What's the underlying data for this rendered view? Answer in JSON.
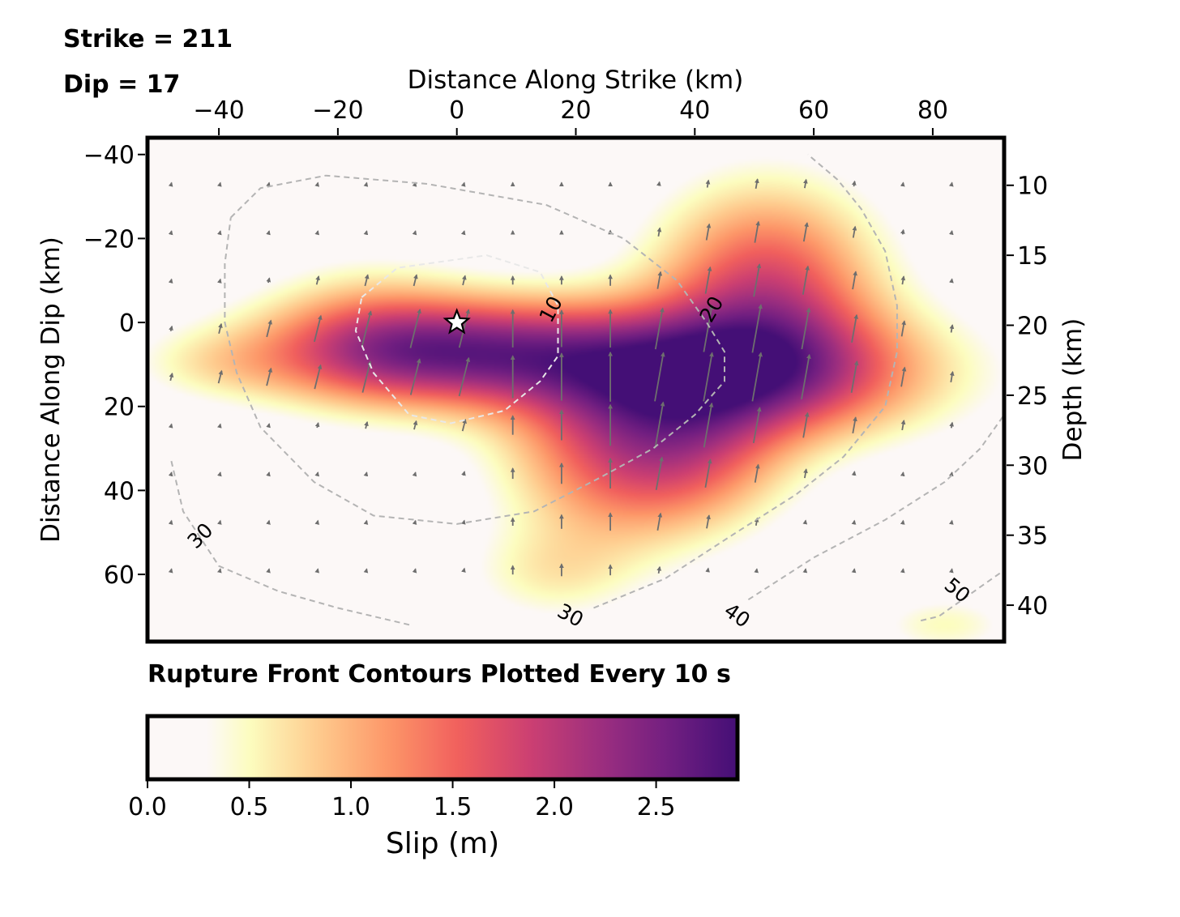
{
  "annotations": {
    "strike": "Strike = 211",
    "dip": "Dip = 17",
    "rupture_note": "Rupture Front Contours Plotted Every 10 s"
  },
  "chart_data": [
    {
      "type": "heatmap",
      "xlabel": "Distance Along Strike (km)",
      "ylabel": "Distance Along Dip (km)",
      "y2label": "Depth (km)",
      "xlim": [
        -52,
        92
      ],
      "ylim": [
        76,
        -44
      ],
      "y2lim": [
        42.6,
        6.6
      ],
      "x_ticks": [
        -40,
        -20,
        0,
        20,
        40,
        60,
        80
      ],
      "x_tick_labels": [
        "−40",
        "−20",
        "0",
        "20",
        "40",
        "60",
        "80"
      ],
      "y_ticks": [
        -40,
        -20,
        0,
        20,
        40,
        60
      ],
      "y_tick_labels": [
        "−40",
        "−20",
        "0",
        "20",
        "40",
        "60"
      ],
      "y2_ticks": [
        10,
        15,
        20,
        25,
        30,
        35,
        40
      ],
      "y2_tick_labels": [
        "10",
        "15",
        "20",
        "25",
        "30",
        "35",
        "40"
      ],
      "colormap": [
        "#fcfdbf",
        "#feca8d",
        "#fd9668",
        "#f1605d",
        "#cd4071",
        "#9e2f7f",
        "#721f81",
        "#440f76"
      ],
      "background_color": "#fcf8f7",
      "grid": false,
      "hypocenter": {
        "x": 0,
        "y": 0
      },
      "slip_sources": [
        {
          "x": 0,
          "y": 7,
          "sx": 22,
          "sy": 9,
          "amp": 2.25
        },
        {
          "x": -15,
          "y": 2,
          "sx": 12,
          "sy": 12,
          "amp": 0.6
        },
        {
          "x": 47,
          "y": 12,
          "sx": 22,
          "sy": 11,
          "amp": 2.3
        },
        {
          "x": 52,
          "y": -10,
          "sx": 13,
          "sy": 16,
          "amp": 1.6
        },
        {
          "x": 27,
          "y": 32,
          "sx": 13,
          "sy": 15,
          "amp": 1.4
        },
        {
          "x": 42,
          "y": 32,
          "sx": 11,
          "sy": 12,
          "amp": 0.8
        },
        {
          "x": -40,
          "y": 10,
          "sx": 10,
          "sy": 6,
          "amp": 0.4
        },
        {
          "x": 16,
          "y": 60,
          "sx": 10,
          "sy": 8,
          "amp": 0.5
        },
        {
          "x": 82,
          "y": 72,
          "sx": 8,
          "sy": 5,
          "amp": 0.5
        }
      ],
      "contours": [
        {
          "level": 10,
          "label": "10",
          "points": [
            [
              -16,
              -6
            ],
            [
              -10,
              -13
            ],
            [
              5,
              -16
            ],
            [
              14,
              -12
            ],
            [
              17,
              -4
            ],
            [
              17,
              8
            ],
            [
              14,
              14
            ],
            [
              8,
              21
            ],
            [
              -1,
              24
            ],
            [
              -8,
              22
            ],
            [
              -14,
              12
            ],
            [
              -17,
              2
            ],
            [
              -16,
              -6
            ]
          ]
        },
        {
          "level": 20,
          "label": "20",
          "points": [
            [
              -38,
              -25
            ],
            [
              -33,
              -32
            ],
            [
              -22,
              -35
            ],
            [
              -5,
              -33
            ],
            [
              15,
              -28
            ],
            [
              28,
              -20
            ],
            [
              37,
              -10
            ],
            [
              42,
              0
            ],
            [
              45,
              7
            ],
            [
              45,
              14
            ],
            [
              40,
              22
            ],
            [
              33,
              30
            ],
            [
              24,
              37
            ],
            [
              13,
              45
            ],
            [
              0,
              48
            ],
            [
              -14,
              46
            ],
            [
              -24,
              38
            ],
            [
              -33,
              25
            ],
            [
              -37,
              12
            ],
            [
              -39,
              0
            ],
            [
              -39,
              -14
            ],
            [
              -38,
              -25
            ]
          ]
        },
        {
          "level": 30,
          "label": "30",
          "points": [
            [
              -48,
              33
            ],
            [
              -46,
              45
            ],
            [
              -40,
              58
            ],
            [
              -30,
              64
            ],
            [
              -20,
              68
            ],
            [
              -8,
              72
            ]
          ]
        },
        {
          "level": 30,
          "label": "30",
          "points": [
            [
              23,
              68
            ],
            [
              35,
              61
            ],
            [
              47,
              50
            ],
            [
              57,
              41
            ],
            [
              65,
              32
            ],
            [
              72,
              20
            ],
            [
              74,
              7
            ],
            [
              74,
              -4
            ],
            [
              72,
              -17
            ],
            [
              68,
              -27
            ],
            [
              64,
              -34
            ],
            [
              59,
              -40
            ]
          ]
        },
        {
          "level": 40,
          "label": "40",
          "points": [
            [
              49,
              66
            ],
            [
              60,
              56
            ],
            [
              72,
              47
            ],
            [
              82,
              38
            ],
            [
              88,
              30
            ],
            [
              92,
              22
            ]
          ]
        },
        {
          "level": 50,
          "label": "50",
          "points": [
            [
              78,
              71
            ],
            [
              81,
              70
            ],
            [
              84,
              67
            ],
            [
              88,
              63
            ],
            [
              92,
              59
            ]
          ]
        }
      ],
      "contour_labels": [
        {
          "text": "10",
          "x": 16,
          "y": -3,
          "angle": -62
        },
        {
          "text": "20",
          "x": 43,
          "y": -3,
          "angle": -60
        },
        {
          "text": "30",
          "x": -43,
          "y": 51,
          "angle": -45
        },
        {
          "text": "30",
          "x": 19,
          "y": 70,
          "angle": 28
        },
        {
          "text": "40",
          "x": 47,
          "y": 70,
          "angle": 35
        },
        {
          "text": "50",
          "x": 84,
          "y": 64,
          "angle": 40
        }
      ]
    },
    {
      "type": "colorbar",
      "label": "Slip (m)",
      "range": [
        0,
        2.9
      ],
      "ticks": [
        0,
        0.5,
        1,
        1.5,
        2,
        2.5
      ],
      "tick_labels": [
        "0.0",
        "0.5",
        "1.0",
        "1.5",
        "2.0",
        "2.5"
      ]
    }
  ]
}
